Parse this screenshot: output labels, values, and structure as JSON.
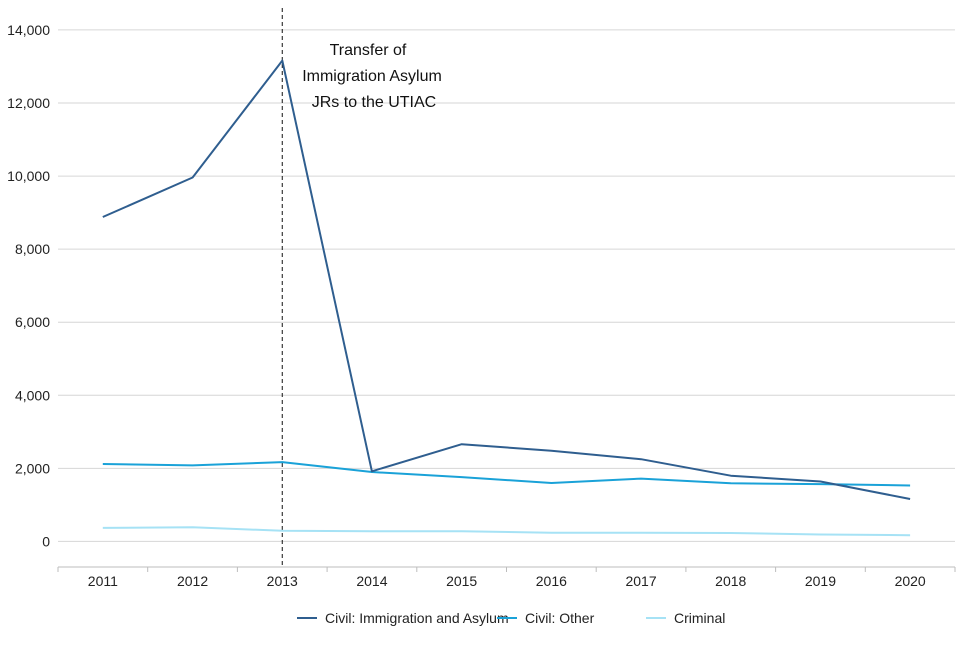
{
  "chart_data": {
    "type": "line",
    "title": "",
    "xlabel": "",
    "ylabel": "",
    "categories": [
      "2011",
      "2012",
      "2013",
      "2014",
      "2015",
      "2016",
      "2017",
      "2018",
      "2019",
      "2020"
    ],
    "y_ticks": [
      "0",
      "2,000",
      "4,000",
      "6,000",
      "8,000",
      "10,000",
      "12,000",
      "14,000"
    ],
    "y_tick_values": [
      0,
      2000,
      4000,
      6000,
      8000,
      10000,
      12000,
      14000
    ],
    "ylim": [
      -700,
      14600
    ],
    "grid": true,
    "legend_position": "bottom",
    "series": [
      {
        "name": "Civil: Immigration and Asylum",
        "color": "#2f5e8f",
        "values": [
          8880,
          9960,
          13160,
          1920,
          2660,
          2480,
          2250,
          1800,
          1640,
          1160
        ]
      },
      {
        "name": "Civil: Other",
        "color": "#1aa2d8",
        "values": [
          2120,
          2080,
          2170,
          1900,
          1760,
          1600,
          1720,
          1590,
          1570,
          1530
        ]
      },
      {
        "name": "Criminal",
        "color": "#a6e2f5",
        "values": [
          370,
          390,
          290,
          280,
          280,
          240,
          240,
          230,
          190,
          170
        ]
      }
    ],
    "annotation": {
      "lines": [
        "Transfer of",
        "Immigration Asylum",
        "JRs to the UTIAC"
      ],
      "at_category": "2013"
    }
  }
}
